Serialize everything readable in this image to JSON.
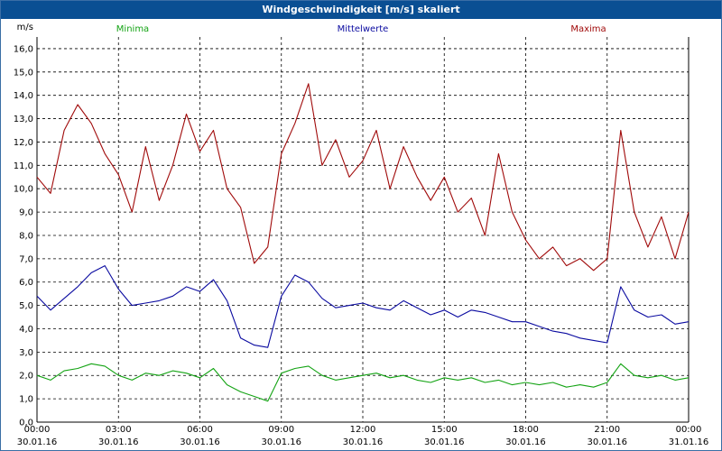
{
  "window": {
    "title": "Windgeschwindigkeit [m/s] skaliert"
  },
  "colors": {
    "titlebar": "#0a4f93",
    "min": "#13a313",
    "mean": "#0a0aa0",
    "max": "#a00a0a",
    "grid": "#000000"
  },
  "chart_data": {
    "type": "line",
    "title": "Windgeschwindigkeit [m/s] skaliert",
    "ylabel": "m/s",
    "ylim": [
      0,
      16.5
    ],
    "y_ticks": [
      "0,0",
      "1,0",
      "2,0",
      "3,0",
      "4,0",
      "5,0",
      "6,0",
      "7,0",
      "8,0",
      "9,0",
      "10,0",
      "11,0",
      "12,0",
      "13,0",
      "14,0",
      "15,0",
      "16,0"
    ],
    "y_tick_values": [
      0,
      1,
      2,
      3,
      4,
      5,
      6,
      7,
      8,
      9,
      10,
      11,
      12,
      13,
      14,
      15,
      16
    ],
    "x_ticks": [
      {
        "time": "00:00",
        "date": "30.01.16"
      },
      {
        "time": "03:00",
        "date": "30.01.16"
      },
      {
        "time": "06:00",
        "date": "30.01.16"
      },
      {
        "time": "09:00",
        "date": "30.01.16"
      },
      {
        "time": "12:00",
        "date": "30.01.16"
      },
      {
        "time": "15:00",
        "date": "30.01.16"
      },
      {
        "time": "18:00",
        "date": "30.01.16"
      },
      {
        "time": "21:00",
        "date": "30.01.16"
      },
      {
        "time": "00:00",
        "date": "31.01.16"
      }
    ],
    "grid": true,
    "x_hours": [
      0,
      0.5,
      1,
      1.5,
      2,
      2.5,
      3,
      3.5,
      4,
      4.5,
      5,
      5.5,
      6,
      6.5,
      7,
      7.5,
      8,
      8.5,
      9,
      9.5,
      10,
      10.5,
      11,
      11.5,
      12,
      12.5,
      13,
      13.5,
      14,
      14.5,
      15,
      15.5,
      16,
      16.5,
      17,
      17.5,
      18,
      18.5,
      19,
      19.5,
      20,
      20.5,
      21,
      21.5,
      22,
      22.5,
      23,
      23.5,
      24
    ],
    "series": [
      {
        "name": "Maxima",
        "color": "#a00a0a",
        "values": [
          10.5,
          9.8,
          12.5,
          13.6,
          12.8,
          11.5,
          10.6,
          9.0,
          11.8,
          9.5,
          11.0,
          13.2,
          11.6,
          12.5,
          10.0,
          9.2,
          6.8,
          7.5,
          11.5,
          12.8,
          14.5,
          11.0,
          12.1,
          10.5,
          11.2,
          12.5,
          10.0,
          11.8,
          10.5,
          9.5,
          10.5,
          9.0,
          9.6,
          8.0,
          11.5,
          9.0,
          7.8,
          7.0,
          7.5,
          6.7,
          7.0,
          6.5,
          7.0,
          12.5,
          9.0,
          7.5,
          8.8,
          7.0,
          9.0
        ]
      },
      {
        "name": "Mittelwerte",
        "color": "#0a0aa0",
        "values": [
          5.4,
          4.8,
          5.3,
          5.8,
          6.4,
          6.7,
          5.7,
          5.0,
          5.1,
          5.2,
          5.4,
          5.8,
          5.6,
          6.1,
          5.2,
          3.6,
          3.3,
          3.2,
          5.4,
          6.3,
          6.0,
          5.3,
          4.9,
          5.0,
          5.1,
          4.9,
          4.8,
          5.2,
          4.9,
          4.6,
          4.8,
          4.5,
          4.8,
          4.7,
          4.5,
          4.3,
          4.3,
          4.1,
          3.9,
          3.8,
          3.6,
          3.5,
          3.4,
          5.8,
          4.8,
          4.5,
          4.6,
          4.2,
          4.3
        ]
      },
      {
        "name": "Minima",
        "color": "#13a313",
        "values": [
          2.0,
          1.8,
          2.2,
          2.3,
          2.5,
          2.4,
          2.0,
          1.8,
          2.1,
          2.0,
          2.2,
          2.1,
          1.9,
          2.3,
          1.6,
          1.3,
          1.1,
          0.9,
          2.1,
          2.3,
          2.4,
          2.0,
          1.8,
          1.9,
          2.0,
          2.1,
          1.9,
          2.0,
          1.8,
          1.7,
          1.9,
          1.8,
          1.9,
          1.7,
          1.8,
          1.6,
          1.7,
          1.6,
          1.7,
          1.5,
          1.6,
          1.5,
          1.7,
          2.5,
          2.0,
          1.9,
          2.0,
          1.8,
          1.9
        ]
      }
    ],
    "legend": [
      "Minima",
      "Mittelwerte",
      "Maxima"
    ],
    "legend_placement": "top"
  }
}
